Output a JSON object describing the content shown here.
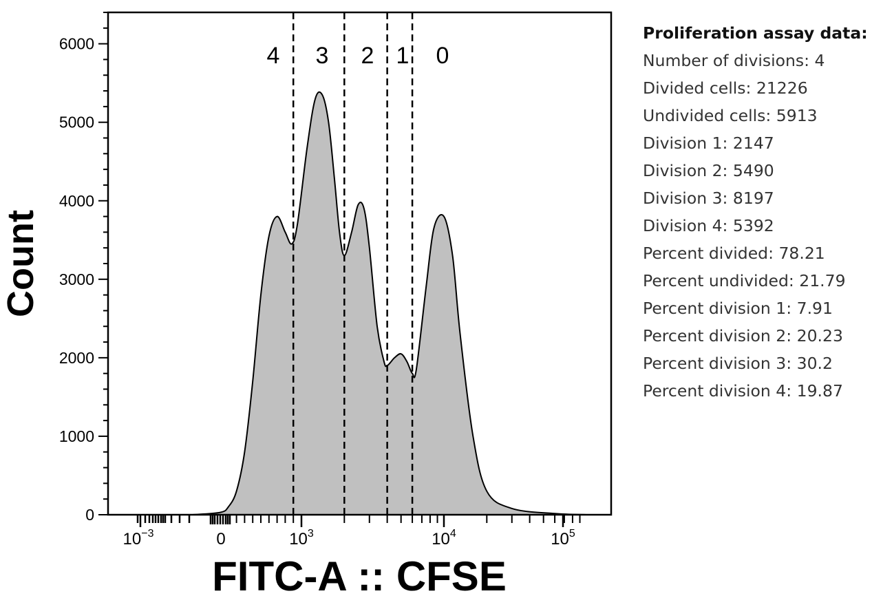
{
  "chart_data": {
    "type": "area",
    "xlabel": "FITC-A :: CFSE",
    "ylabel": "Count",
    "ylim": [
      0,
      6400
    ],
    "yticks": [
      0,
      1000,
      2000,
      3000,
      4000,
      5000,
      6000
    ],
    "x_scale": "biexponential",
    "xticks": [
      {
        "base": "10",
        "exp": "−3"
      },
      {
        "base": "0",
        "exp": ""
      },
      {
        "base": "10",
        "exp": "3"
      },
      {
        "base": "10",
        "exp": "4"
      },
      {
        "base": "10",
        "exp": "5"
      }
    ],
    "gate_labels": [
      "4",
      "3",
      "2",
      "1",
      "0"
    ],
    "fill_color": "#c0c0c0",
    "line_color": "#000000",
    "grid": false,
    "series": [
      {
        "x": [
          -2,
          0,
          100,
          200,
          300,
          400,
          500,
          600,
          700,
          800,
          880,
          950,
          1100,
          1250,
          1400,
          1550,
          1700,
          1850,
          2000,
          2250,
          2500,
          2750,
          3000,
          3400,
          3800,
          4000,
          4500,
          5000,
          5500,
          6000,
          6400,
          7500,
          8500,
          10000,
          11500,
          13000,
          16000,
          20000,
          30000,
          60000,
          100000
        ],
        "y": [
          0,
          30,
          100,
          300,
          800,
          1700,
          2800,
          3550,
          3800,
          3600,
          3450,
          3700,
          4700,
          5300,
          5350,
          5000,
          4300,
          3600,
          3300,
          3600,
          3950,
          3900,
          3400,
          2400,
          1950,
          1900,
          2000,
          2050,
          1950,
          1800,
          1850,
          2900,
          3650,
          3800,
          3300,
          2300,
          1000,
          300,
          80,
          15,
          0
        ]
      }
    ],
    "gates": [
      900,
      2000,
      4000,
      6000
    ]
  },
  "stats": {
    "title": "Proliferation assay data:",
    "lines": [
      "Number of divisions: 4",
      "Divided cells: 21226",
      "Undivided cells: 5913",
      "Division 1: 2147",
      "Division 2: 5490",
      "Division 3: 8197",
      "Division 4: 5392",
      "Percent divided: 78.21",
      "Percent undivided: 21.79",
      "Percent division 1: 7.91",
      "Percent division 2: 20.23",
      "Percent division 3: 30.2",
      "Percent division 4: 19.87"
    ]
  }
}
